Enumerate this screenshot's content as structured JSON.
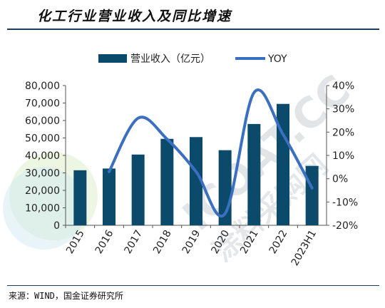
{
  "header": {
    "title": "化工行业营业收入及同比增速"
  },
  "footer": {
    "source": "来源：WIND，国金证券研究所"
  },
  "watermark": {
    "text": "ICOAT.CC",
    "text_cn": "涂料采购网"
  },
  "colors": {
    "bar": "#0c4a6b",
    "line": "#3b6fc0",
    "title_rule": "#1f3a5f"
  },
  "chart_data": {
    "type": "bar+line",
    "categories": [
      "2015",
      "2016",
      "2017",
      "2018",
      "2019",
      "2020",
      "2021",
      "2022",
      "2023H1"
    ],
    "series": [
      {
        "name": "营业收入（亿元）",
        "type": "bar",
        "axis": "left",
        "values": [
          31500,
          32500,
          40500,
          49500,
          50500,
          43000,
          58000,
          69500,
          34000
        ]
      },
      {
        "name": "YOY",
        "type": "line",
        "axis": "right",
        "values": [
          null,
          3,
          26,
          17,
          3,
          -15,
          37,
          19,
          -4
        ]
      }
    ],
    "y_left": {
      "min": 0,
      "max": 80000,
      "step": 10000,
      "ticks": [
        "0",
        "10,000",
        "20,000",
        "30,000",
        "40,000",
        "50,000",
        "60,000",
        "70,000",
        "80,000"
      ]
    },
    "y_right": {
      "min": -20,
      "max": 40,
      "step": 10,
      "ticks": [
        "-20%",
        "-10%",
        "0%",
        "10%",
        "20%",
        "30%",
        "40%"
      ]
    },
    "legend_position": "top-center",
    "grid": false
  }
}
